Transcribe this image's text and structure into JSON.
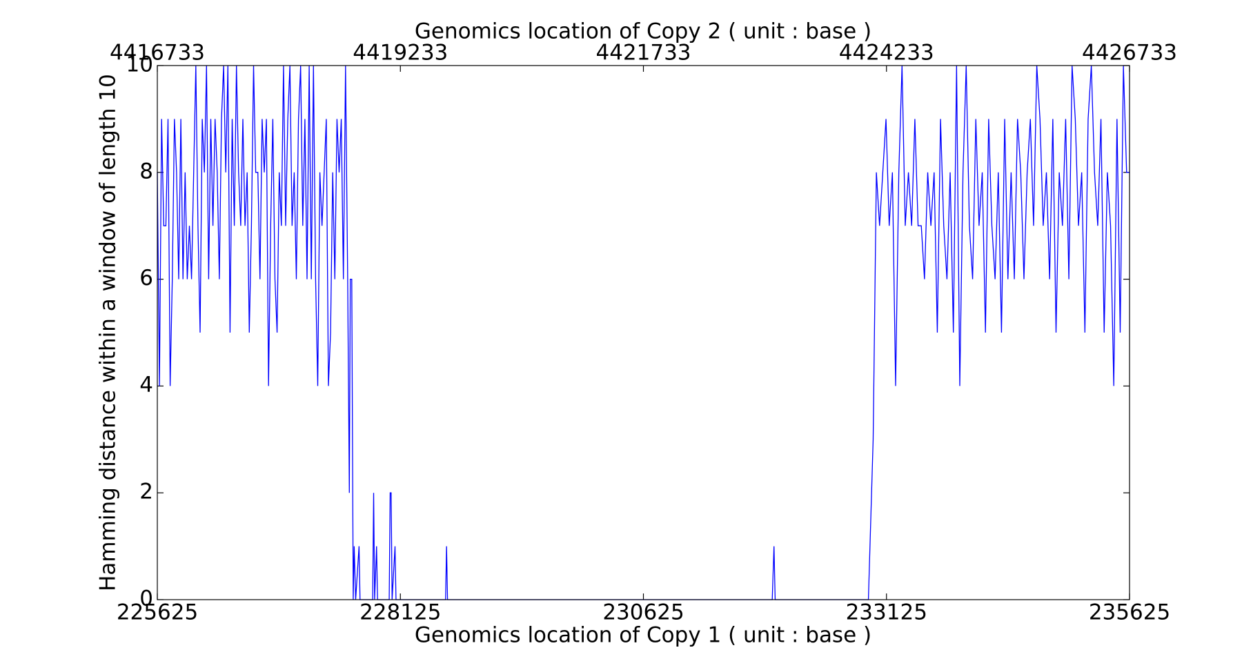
{
  "chart_data": {
    "type": "line",
    "xlabel": "Genomics location of Copy 1 ( unit : base )",
    "x2label": "Genomics location of Copy 2 ( unit : base )",
    "ylabel": "Hamming distance within a window of length 10",
    "color": "#0000ff",
    "xlim": [
      225625,
      235625
    ],
    "xticks": [
      225625,
      228125,
      230625,
      233125,
      235625
    ],
    "x2lim": [
      4416733,
      4426733
    ],
    "x2ticks": [
      4416733,
      4419233,
      4421733,
      4424233,
      4426733
    ],
    "ylim": [
      0,
      10
    ],
    "yticks": [
      0,
      2,
      4,
      6,
      8,
      10
    ],
    "grid": false,
    "x": [
      225625,
      225647,
      225669,
      225691,
      225713,
      225735,
      225757,
      225779,
      225801,
      225823,
      225845,
      225867,
      225889,
      225911,
      225933,
      225955,
      225977,
      225999,
      226021,
      226043,
      226065,
      226087,
      226109,
      226131,
      226153,
      226175,
      226197,
      226219,
      226241,
      226263,
      226285,
      226307,
      226329,
      226351,
      226373,
      226395,
      226417,
      226439,
      226461,
      226483,
      226505,
      226527,
      226549,
      226571,
      226593,
      226615,
      226637,
      226659,
      226681,
      226703,
      226725,
      226747,
      226769,
      226791,
      226813,
      226835,
      226857,
      226879,
      226901,
      226923,
      226945,
      226967,
      226989,
      227011,
      227033,
      227055,
      227077,
      227099,
      227121,
      227143,
      227165,
      227187,
      227209,
      227231,
      227253,
      227275,
      227297,
      227319,
      227341,
      227363,
      227385,
      227407,
      227429,
      227451,
      227473,
      227495,
      227517,
      227539,
      227561,
      227583,
      227600,
      227610,
      227625,
      227640,
      227650,
      227665,
      227700,
      227710,
      227840,
      227850,
      227860,
      227880,
      227890,
      228010,
      228020,
      228030,
      228040,
      228070,
      228080,
      228590,
      228600,
      228610,
      231950,
      231968,
      231980,
      232939,
      232988,
      233021,
      233054,
      233087,
      233120,
      233153,
      233186,
      233219,
      233252,
      233285,
      233318,
      233351,
      233384,
      233417,
      233450,
      233483,
      233516,
      233549,
      233582,
      233615,
      233648,
      233681,
      233714,
      233747,
      233780,
      233813,
      233846,
      233879,
      233912,
      233945,
      233978,
      234011,
      234044,
      234077,
      234110,
      234143,
      234176,
      234209,
      234242,
      234275,
      234308,
      234341,
      234374,
      234407,
      234440,
      234473,
      234506,
      234539,
      234572,
      234605,
      234638,
      234671,
      234704,
      234737,
      234770,
      234803,
      234836,
      234869,
      234902,
      234935,
      234968,
      235001,
      235034,
      235067,
      235100,
      235133,
      235166,
      235199,
      235232,
      235265,
      235298,
      235331,
      235364,
      235397,
      235430,
      235463,
      235496,
      235529,
      235562,
      235595,
      235625
    ],
    "values": [
      8,
      4,
      9,
      7,
      7,
      9,
      4,
      6,
      9,
      8,
      6,
      9,
      6,
      8,
      6,
      7,
      6,
      8,
      10,
      7,
      5,
      9,
      8,
      10,
      6,
      9,
      7,
      9,
      8,
      6,
      9,
      10,
      8,
      10,
      5,
      9,
      7,
      10,
      8,
      7,
      9,
      7,
      8,
      5,
      7,
      10,
      8,
      8,
      6,
      9,
      8,
      9,
      4,
      7,
      9,
      6,
      5,
      8,
      7,
      10,
      7,
      9,
      10,
      7,
      8,
      6,
      9,
      10,
      7,
      9,
      6,
      10,
      6,
      10,
      6,
      4,
      8,
      7,
      8,
      9,
      4,
      5,
      8,
      6,
      9,
      8,
      9,
      6,
      10,
      6,
      2,
      6,
      6,
      0,
      1,
      0,
      1,
      0,
      0,
      2,
      0,
      1,
      0,
      0,
      2,
      2,
      0,
      1,
      0,
      0,
      1,
      0,
      0,
      1,
      0,
      0,
      3,
      8,
      7,
      8,
      9,
      7,
      8,
      4,
      8,
      10,
      7,
      8,
      7,
      9,
      7,
      7,
      6,
      8,
      7,
      8,
      5,
      9,
      7,
      6,
      8,
      5,
      10,
      4,
      8,
      10,
      7,
      6,
      9,
      7,
      8,
      5,
      9,
      7,
      6,
      8,
      5,
      9,
      6,
      8,
      6,
      9,
      8,
      6,
      8,
      9,
      7,
      10,
      9,
      7,
      8,
      6,
      9,
      5,
      8,
      7,
      9,
      6,
      10,
      9,
      7,
      8,
      5,
      9,
      10,
      8,
      7,
      9,
      5,
      8,
      7,
      4,
      9,
      5,
      10,
      8,
      8
    ]
  }
}
